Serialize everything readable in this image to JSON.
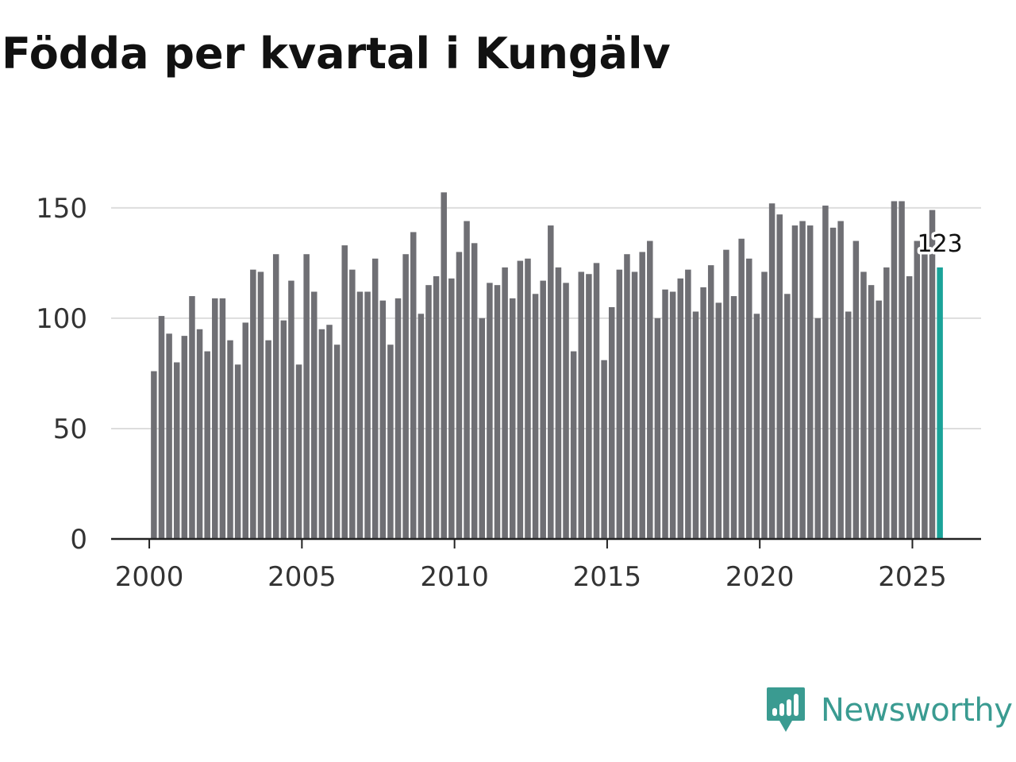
{
  "chart_data": {
    "type": "bar",
    "title": "Födda per kvartal i Kungälv",
    "xlabel": "",
    "ylabel": "",
    "x_start": 2000.0,
    "x_step": 0.25,
    "xlim": [
      1998.75,
      2027.25
    ],
    "ylim": [
      0,
      160
    ],
    "yticks": [
      0,
      50,
      100,
      150
    ],
    "xticks": [
      2000,
      2005,
      2010,
      2015,
      2020,
      2025
    ],
    "grid": true,
    "values": [
      76,
      101,
      93,
      80,
      92,
      110,
      95,
      85,
      109,
      109,
      90,
      79,
      98,
      122,
      121,
      90,
      129,
      99,
      117,
      79,
      129,
      112,
      95,
      97,
      88,
      133,
      122,
      112,
      112,
      127,
      108,
      88,
      109,
      129,
      139,
      102,
      115,
      119,
      157,
      118,
      130,
      144,
      134,
      100,
      116,
      115,
      123,
      109,
      126,
      127,
      111,
      117,
      142,
      123,
      116,
      85,
      121,
      120,
      125,
      81,
      105,
      122,
      129,
      121,
      130,
      135,
      100,
      113,
      112,
      118,
      122,
      103,
      114,
      124,
      107,
      131,
      110,
      136,
      127,
      102,
      121,
      152,
      147,
      111,
      142,
      144,
      142,
      100,
      151,
      141,
      144,
      103,
      135,
      121,
      115,
      108,
      123,
      153,
      153,
      119,
      135,
      130,
      149,
      123
    ],
    "highlight_index": 103,
    "highlight_label": "123",
    "bar_color": "#6f6f74",
    "highlight_color": "#1aa399",
    "grid_color": "#dddddd",
    "axis_color": "#222222"
  },
  "brand": {
    "name": "Newsworthy",
    "color": "#3a9b91"
  }
}
